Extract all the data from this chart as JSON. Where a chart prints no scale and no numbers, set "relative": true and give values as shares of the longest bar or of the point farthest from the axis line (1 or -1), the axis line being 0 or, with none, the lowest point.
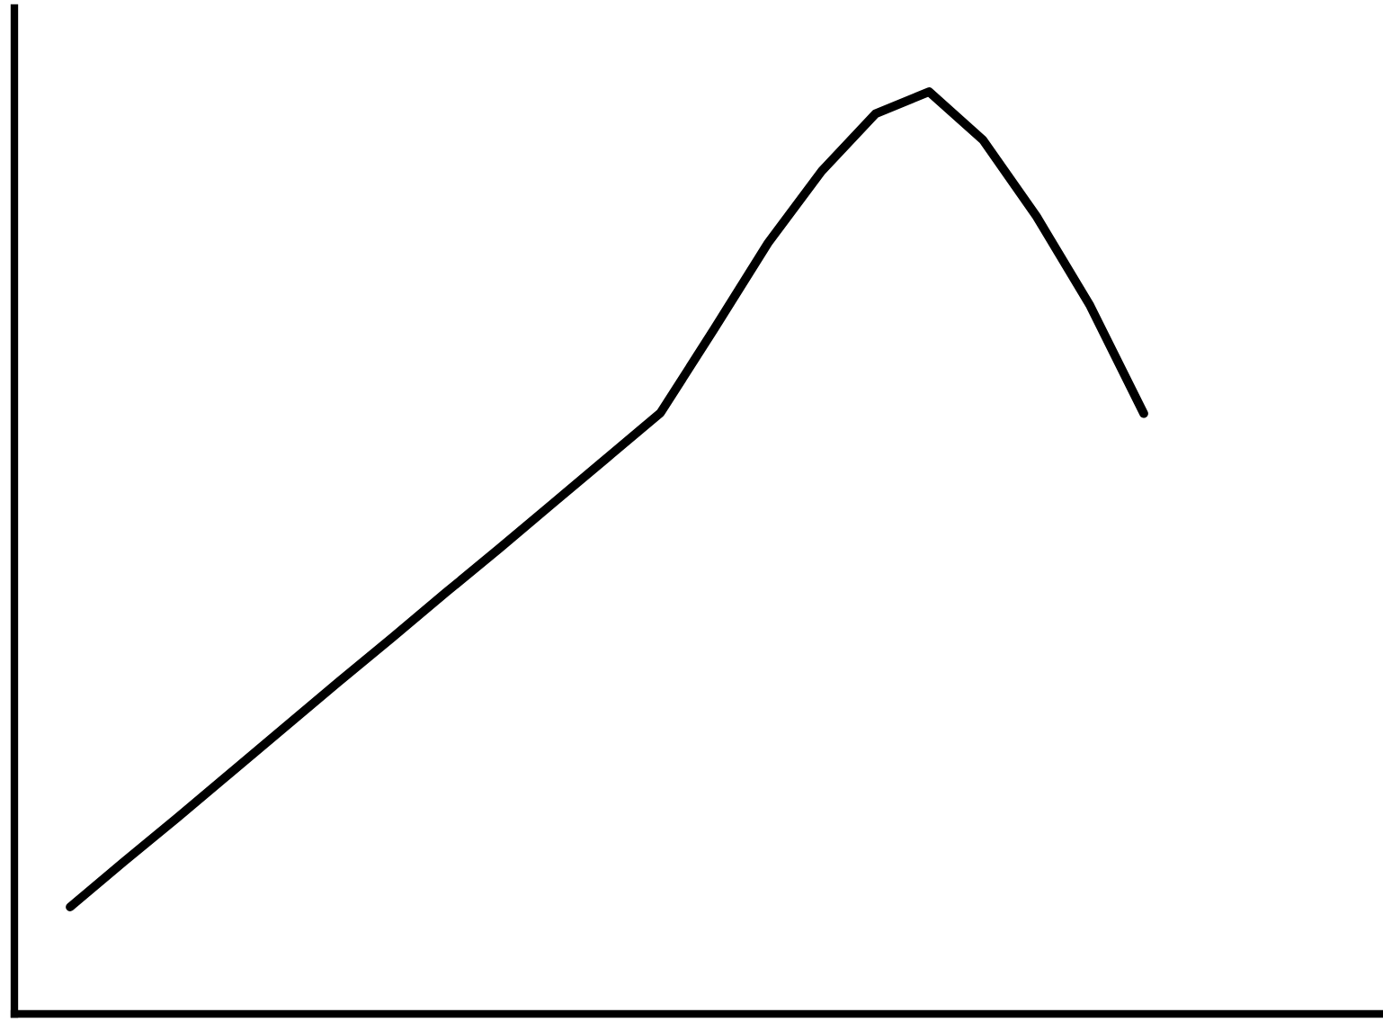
{
  "chart_data": {
    "type": "line",
    "relative": true,
    "grid": false,
    "legend": false,
    "categories": [
      null,
      null,
      null,
      null,
      null,
      null,
      null,
      null,
      null,
      null,
      null,
      null,
      null,
      null,
      null,
      null,
      null,
      null,
      null,
      null,
      null
    ],
    "series": [
      {
        "color": "#000000",
        "values": [
          0.116,
          0.165,
          0.213,
          0.262,
          0.311,
          0.36,
          0.408,
          0.457,
          0.505,
          0.554,
          0.603,
          0.652,
          0.743,
          0.836,
          0.914,
          0.976,
          1.0,
          0.948,
          0.865,
          0.768,
          0.651
        ]
      }
    ]
  }
}
